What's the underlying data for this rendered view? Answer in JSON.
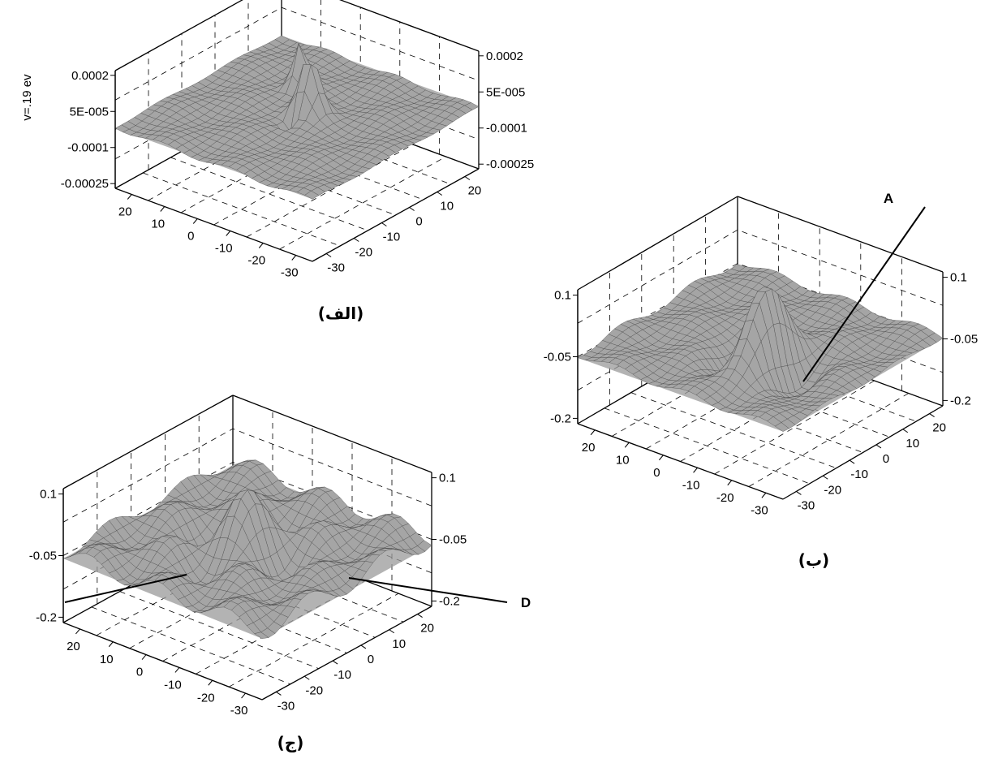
{
  "chart_data": [
    {
      "id": "a",
      "type": "surface",
      "caption": "(الف)",
      "title": "v=.19 ev",
      "z_ticks_left": [
        "0.0002",
        "5E-005",
        "-0.0001",
        "-0.00025"
      ],
      "z_ticks_right": [
        "0.0002",
        "5E-005",
        "-0.0001",
        "-0.00025"
      ],
      "x_ticks": [
        "20",
        "10",
        "0",
        "-10",
        "-20",
        "-30"
      ],
      "y_ticks": [
        "-30",
        "-20",
        "-10",
        "0",
        "10",
        "20"
      ],
      "zlim": [
        -0.00025,
        0.0002
      ],
      "xlim": [
        -30,
        30
      ],
      "ylim": [
        -30,
        30
      ],
      "grid": true
    },
    {
      "id": "b",
      "type": "surface",
      "caption": "(ب)",
      "title": "",
      "z_ticks_left": [
        "0.1",
        "-0.05",
        "-0.2"
      ],
      "z_ticks_right": [
        "0.1",
        "-0.05",
        "-0.2"
      ],
      "x_ticks": [
        "20",
        "10",
        "0",
        "-10",
        "-20",
        "-30"
      ],
      "y_ticks": [
        "-30",
        "-20",
        "-10",
        "0",
        "10",
        "20"
      ],
      "zlim": [
        -0.2,
        0.1
      ],
      "xlim": [
        -30,
        30
      ],
      "ylim": [
        -30,
        30
      ],
      "grid": true,
      "annotation": "A"
    },
    {
      "id": "c",
      "type": "surface",
      "caption": "(ج)",
      "title": "",
      "z_ticks_left": [
        "0.1",
        "-0.05",
        "-0.2"
      ],
      "z_ticks_right": [
        "0.1",
        "-0.05",
        "-0.2"
      ],
      "x_ticks": [
        "20",
        "10",
        "0",
        "-10",
        "-20",
        "-30"
      ],
      "y_ticks": [
        "-30",
        "-20",
        "-10",
        "0",
        "10",
        "20"
      ],
      "zlim": [
        -0.2,
        0.1
      ],
      "xlim": [
        -30,
        30
      ],
      "ylim": [
        -30,
        30
      ],
      "grid": true,
      "annotation": "D"
    }
  ],
  "colors": {
    "ink": "#000000",
    "surface_fill": "#9a9a9a",
    "mesh": "#444444",
    "background": "#ffffff"
  }
}
